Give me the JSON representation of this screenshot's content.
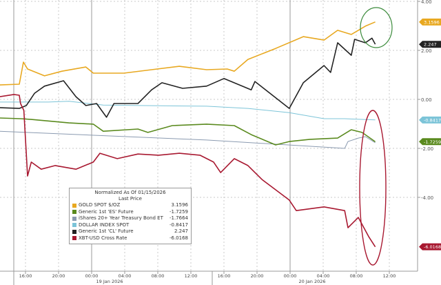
{
  "chart_data": {
    "type": "line",
    "title": "Normalized As Of 01/15/2026",
    "subtitle": "Last Price",
    "x_unit": "hours relative to 19 Jan 2026 00:00",
    "x_ticks": [
      {
        "h": -8,
        "label": "16:00"
      },
      {
        "h": -4,
        "label": "20:00"
      },
      {
        "h": 0,
        "label": "00:00"
      },
      {
        "h": 4,
        "label": "04:00"
      },
      {
        "h": 8,
        "label": "08:00"
      },
      {
        "h": 12,
        "label": "12:00"
      },
      {
        "h": 16,
        "label": "16:00"
      },
      {
        "h": 20,
        "label": "20:00"
      },
      {
        "h": 24,
        "label": "00:00"
      },
      {
        "h": 28,
        "label": "04:00"
      },
      {
        "h": 32,
        "label": "08:00"
      },
      {
        "h": 36,
        "label": "12:00"
      }
    ],
    "date_labels": [
      {
        "h": 2,
        "label": "19 Jan 2026"
      },
      {
        "h": 26,
        "label": "20 Jan 2026"
      }
    ],
    "y_ticks": [
      {
        "v": 4,
        "label": "4.00"
      },
      {
        "v": 2,
        "label": "2.00"
      },
      {
        "v": 0,
        "label": "0.00"
      },
      {
        "v": -2,
        "label": "-2.00"
      },
      {
        "v": -4,
        "label": "-4.00"
      }
    ],
    "ylim": [
      -7,
      4.1
    ],
    "xlim": [
      -11.1,
      39.4
    ],
    "grid": true,
    "legend_placement": "bottom-left",
    "series": [
      {
        "name": "GOLD SPOT $/OZ",
        "last": "3.1596",
        "color": "#e8a820",
        "points": [
          [
            -11.1,
            0.59
          ],
          [
            -8.75,
            0.62
          ],
          [
            -8.25,
            1.52
          ],
          [
            -7.75,
            1.24
          ],
          [
            -5.7,
            0.96
          ],
          [
            -3.6,
            1.15
          ],
          [
            -0.7,
            1.32
          ],
          [
            0.2,
            1.07
          ],
          [
            3.9,
            1.07
          ],
          [
            7.25,
            1.21
          ],
          [
            10.6,
            1.35
          ],
          [
            13.9,
            1.21
          ],
          [
            16.4,
            1.24
          ],
          [
            17.25,
            1.15
          ],
          [
            18.9,
            1.63
          ],
          [
            22.25,
            2.08
          ],
          [
            25.6,
            2.56
          ],
          [
            28.1,
            2.42
          ],
          [
            29.75,
            2.82
          ],
          [
            31.4,
            2.65
          ],
          [
            33.1,
            2.99
          ],
          [
            34.3,
            3.16
          ]
        ]
      },
      {
        "name": "Generic 1st 'ES' Future",
        "last": "-1.7259",
        "color": "#5a8a1e",
        "points": [
          [
            -11.1,
            -0.76
          ],
          [
            -8.6,
            -0.79
          ],
          [
            -7.3,
            -0.82
          ],
          [
            -2.75,
            -0.96
          ],
          [
            0.2,
            -1.01
          ],
          [
            1.4,
            -1.3
          ],
          [
            5.6,
            -1.21
          ],
          [
            6.8,
            -1.35
          ],
          [
            9.75,
            -1.07
          ],
          [
            13.9,
            -1.01
          ],
          [
            17.25,
            -1.07
          ],
          [
            19.3,
            -1.44
          ],
          [
            22.25,
            -1.86
          ],
          [
            23.9,
            -1.72
          ],
          [
            26.4,
            -1.63
          ],
          [
            29.75,
            -1.58
          ],
          [
            31.4,
            -1.24
          ],
          [
            32.7,
            -1.35
          ],
          [
            34.3,
            -1.73
          ]
        ]
      },
      {
        "name": "iShares 20+ Year Treasury Bond ETF",
        "last": "-1.7664",
        "color": "#8a9ab0",
        "points": [
          [
            -11.1,
            -1.3
          ],
          [
            13.9,
            -1.66
          ],
          [
            30.6,
            -2.0
          ],
          [
            31.0,
            -1.72
          ],
          [
            32.25,
            -1.58
          ],
          [
            33.1,
            -1.52
          ],
          [
            34.3,
            -1.77
          ]
        ]
      },
      {
        "name": "DOLLAR INDEX SPOT",
        "last": "-0.8417",
        "color": "#7cc4d8",
        "points": [
          [
            -11.1,
            -0.11
          ],
          [
            -5.25,
            -0.11
          ],
          [
            -2.75,
            -0.08
          ],
          [
            1.4,
            -0.23
          ],
          [
            5.6,
            -0.25
          ],
          [
            13.9,
            -0.28
          ],
          [
            18.9,
            -0.37
          ],
          [
            23.9,
            -0.54
          ],
          [
            28.1,
            -0.79
          ],
          [
            30.6,
            -0.79
          ],
          [
            34.3,
            -0.84
          ]
        ]
      },
      {
        "name": "Generic 1st 'CL' Future",
        "last": "2.247",
        "color": "#222222",
        "points": [
          [
            -11.1,
            -0.34
          ],
          [
            -8.75,
            -0.37
          ],
          [
            -7.9,
            -0.25
          ],
          [
            -6.9,
            0.25
          ],
          [
            -5.7,
            0.54
          ],
          [
            -3.4,
            0.76
          ],
          [
            -1.9,
            0.11
          ],
          [
            -0.7,
            -0.25
          ],
          [
            0.6,
            -0.17
          ],
          [
            1.8,
            -0.73
          ],
          [
            2.7,
            -0.17
          ],
          [
            5.6,
            -0.17
          ],
          [
            7.25,
            0.39
          ],
          [
            8.5,
            0.68
          ],
          [
            11.0,
            0.45
          ],
          [
            13.9,
            0.54
          ],
          [
            16.0,
            0.85
          ],
          [
            19.3,
            0.39
          ],
          [
            19.75,
            0.73
          ],
          [
            23.9,
            -0.37
          ],
          [
            25.6,
            0.68
          ],
          [
            28.1,
            1.38
          ],
          [
            28.9,
            1.1
          ],
          [
            29.75,
            2.31
          ],
          [
            31.4,
            1.8
          ],
          [
            31.8,
            2.45
          ],
          [
            33.1,
            2.31
          ],
          [
            33.9,
            2.5
          ],
          [
            34.3,
            2.25
          ]
        ]
      },
      {
        "name": "XBT-USD Cross Rate",
        "last": "-6.0168",
        "color": "#a81830",
        "points": [
          [
            -11.1,
            0.11
          ],
          [
            -9.4,
            0.2
          ],
          [
            -8.75,
            0.17
          ],
          [
            -8.6,
            -0.17
          ],
          [
            -8.2,
            -0.45
          ],
          [
            -7.75,
            -3.13
          ],
          [
            -7.3,
            -2.56
          ],
          [
            -6.1,
            -2.85
          ],
          [
            -4.4,
            -2.7
          ],
          [
            -1.9,
            -2.85
          ],
          [
            0.2,
            -2.56
          ],
          [
            1.0,
            -2.2
          ],
          [
            3.1,
            -2.42
          ],
          [
            5.6,
            -2.23
          ],
          [
            8.1,
            -2.28
          ],
          [
            10.6,
            -2.2
          ],
          [
            13.1,
            -2.28
          ],
          [
            14.75,
            -2.56
          ],
          [
            15.6,
            -2.99
          ],
          [
            17.25,
            -2.42
          ],
          [
            18.9,
            -2.7
          ],
          [
            20.6,
            -3.27
          ],
          [
            22.25,
            -3.69
          ],
          [
            23.9,
            -4.11
          ],
          [
            24.75,
            -4.54
          ],
          [
            28.1,
            -4.39
          ],
          [
            30.6,
            -4.54
          ],
          [
            31.0,
            -5.24
          ],
          [
            32.25,
            -4.82
          ],
          [
            33.5,
            -5.6
          ],
          [
            34.3,
            -6.02
          ]
        ]
      }
    ],
    "annotations": [
      {
        "type": "ellipse",
        "target": "GOLD SPOT $/OZ",
        "color": "#3a8a3a"
      },
      {
        "type": "ellipse",
        "target": "XBT-USD Cross Rate",
        "color": "#a81830"
      }
    ]
  }
}
